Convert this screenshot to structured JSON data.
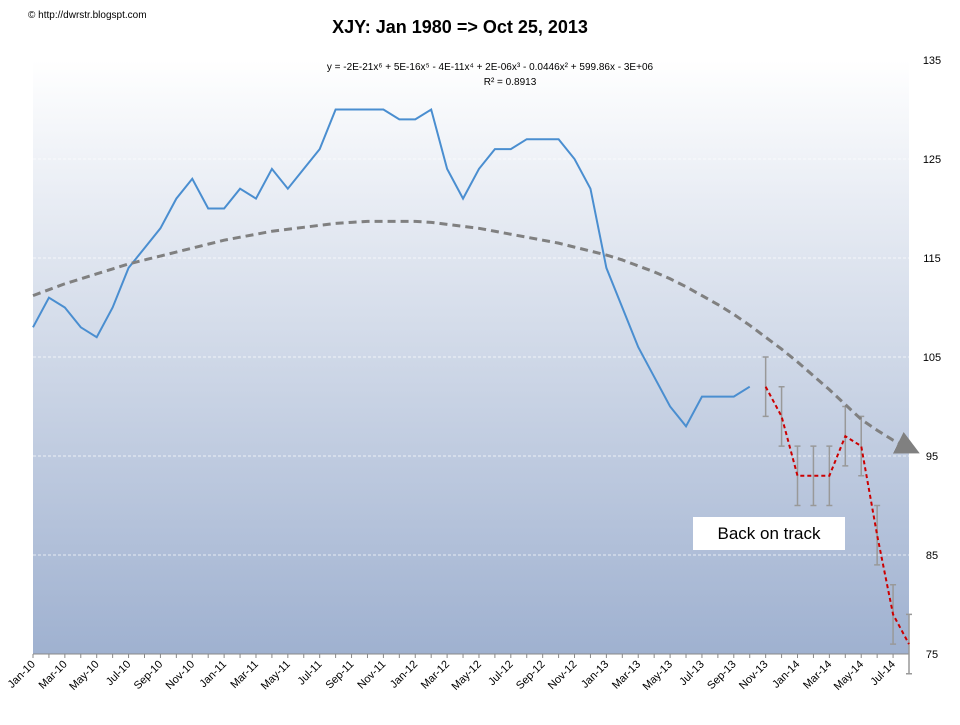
{
  "chart_data": {
    "type": "line",
    "credit": "© http://dwrstr.blogspt.com",
    "title": "XJY: Jan 1980  => Oct 25, 2013",
    "equation": "y = -2E-21x⁶ + 5E-16x⁵ - 4E-11x⁴ + 2E-06x³ - 0.0446x² + 599.86x - 3E+06",
    "r_squared": "R² = 0.8913",
    "annotation": "Back on track",
    "categories": [
      "Jan-10",
      null,
      "Mar-10",
      null,
      "May-10",
      null,
      "Jul-10",
      null,
      "Sep-10",
      null,
      "Nov-10",
      null,
      "Jan-11",
      null,
      "Mar-11",
      null,
      "May-11",
      null,
      "Jul-11",
      null,
      "Sep-11",
      null,
      "Nov-11",
      null,
      "Jan-12",
      null,
      "Mar-12",
      null,
      "May-12",
      null,
      "Jul-12",
      null,
      "Sep-12",
      null,
      "Nov-12",
      null,
      "Jan-13",
      null,
      "Mar-13",
      null,
      "May-13",
      null,
      "Jul-13",
      null,
      "Sep-13",
      null,
      "Nov-13",
      null,
      "Jan-14",
      null,
      "Mar-14",
      null,
      "May-14",
      null,
      "Jul-14",
      null
    ],
    "series": [
      {
        "color": "#4a8ed0",
        "dashed": false,
        "values": [
          108,
          111,
          110,
          108,
          107,
          110,
          114,
          116,
          118,
          121,
          123,
          120,
          120,
          122,
          121,
          124,
          122,
          124,
          126,
          130,
          130,
          130,
          130,
          129,
          129,
          130,
          124,
          121,
          124,
          126,
          126,
          127,
          127,
          127,
          125,
          122,
          114,
          110,
          106,
          103,
          100,
          98,
          101,
          101,
          101,
          102,
          null,
          null,
          null,
          null,
          null,
          null,
          null,
          null,
          null,
          null
        ]
      },
      {
        "color": "#cc0000",
        "dashed": true,
        "error_color": "#999999",
        "values": [
          null,
          null,
          null,
          null,
          null,
          null,
          null,
          null,
          null,
          null,
          null,
          null,
          null,
          null,
          null,
          null,
          null,
          null,
          null,
          null,
          null,
          null,
          null,
          null,
          null,
          null,
          null,
          null,
          null,
          null,
          null,
          null,
          null,
          null,
          null,
          null,
          null,
          null,
          null,
          null,
          null,
          null,
          null,
          null,
          null,
          null,
          102,
          99,
          93,
          93,
          93,
          97,
          96,
          87,
          79,
          76
        ],
        "errors": [
          null,
          null,
          null,
          null,
          null,
          null,
          null,
          null,
          null,
          null,
          null,
          null,
          null,
          null,
          null,
          null,
          null,
          null,
          null,
          null,
          null,
          null,
          null,
          null,
          null,
          null,
          null,
          null,
          null,
          null,
          null,
          null,
          null,
          null,
          null,
          null,
          null,
          null,
          null,
          null,
          null,
          null,
          null,
          null,
          null,
          null,
          3,
          3,
          3,
          3,
          3,
          3,
          3,
          3,
          3,
          3
        ]
      },
      {
        "color": "#808080",
        "dashed": true,
        "arrow": true,
        "values": [
          111.2,
          111.8,
          112.4,
          112.9,
          113.4,
          113.9,
          114.4,
          114.8,
          115.2,
          115.6,
          116,
          116.4,
          116.8,
          117.1,
          117.4,
          117.7,
          117.9,
          118.1,
          118.3,
          118.5,
          118.6,
          118.7,
          118.7,
          118.7,
          118.7,
          118.6,
          118.4,
          118.2,
          118,
          117.7,
          117.4,
          117.1,
          116.8,
          116.5,
          116.1,
          115.7,
          115.3,
          114.8,
          114.2,
          113.6,
          112.9,
          112.1,
          111.2,
          110.3,
          109.3,
          108.2,
          107,
          105.8,
          104.5,
          103.1,
          101.7,
          100.2,
          98.7,
          97.6,
          96.6,
          95.8
        ]
      }
    ],
    "ylim": [
      75,
      135
    ],
    "yticks": [
      75,
      85,
      95,
      105,
      115,
      125,
      135
    ],
    "grid": true
  }
}
